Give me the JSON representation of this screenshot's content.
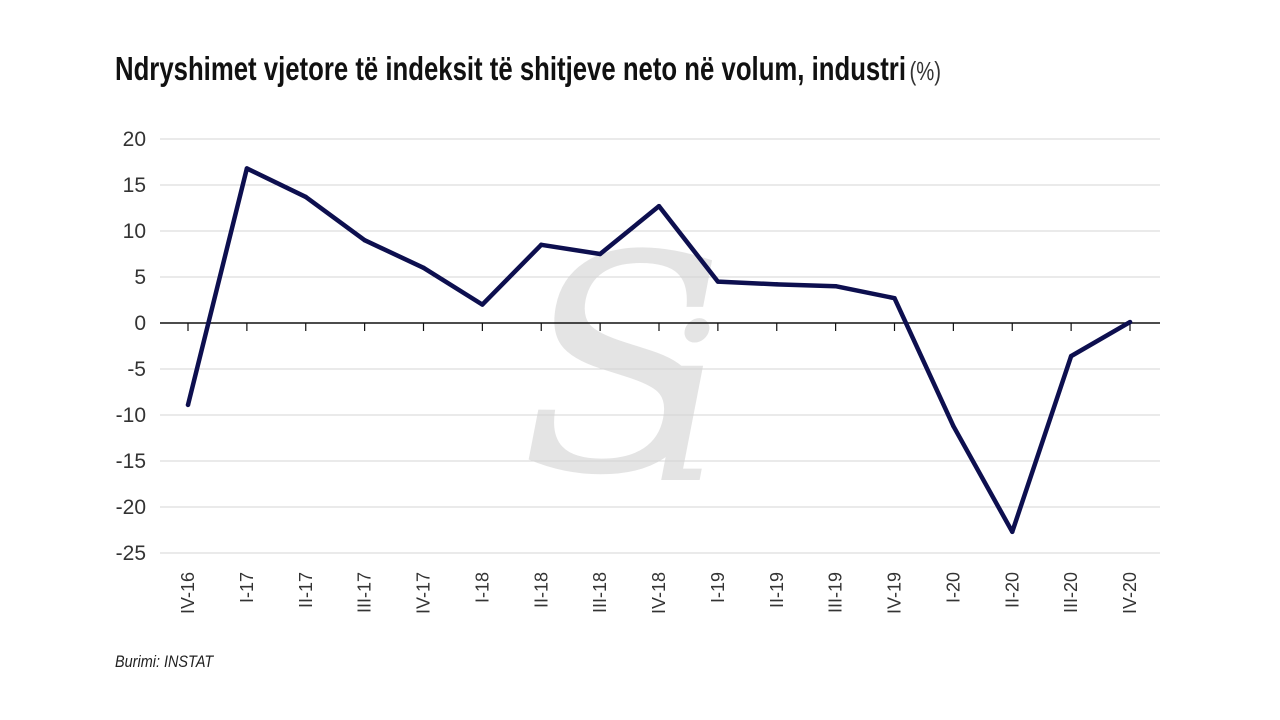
{
  "chart_data": {
    "type": "line",
    "title": "Ndryshimet vjetore të indeksit të shitjeve neto në volum, industri",
    "unit": "(%)",
    "xlabel": "",
    "ylabel": "",
    "ylim": [
      -25,
      20
    ],
    "yticks": [
      20,
      15,
      10,
      5,
      0,
      -5,
      -10,
      -15,
      -20,
      -25
    ],
    "grid": true,
    "categories": [
      "IV-16",
      "I-17",
      "II-17",
      "III-17",
      "IV-17",
      "I-18",
      "II-18",
      "III-18",
      "IV-18",
      "I-19",
      "II-19",
      "III-19",
      "IV-19",
      "I-20",
      "II-20",
      "III-20",
      "IV-20"
    ],
    "series": [
      {
        "name": "Industri",
        "color": "#0d0f4f",
        "values": [
          -8.9,
          16.8,
          13.7,
          9.0,
          6.0,
          2.0,
          8.5,
          7.5,
          12.7,
          4.5,
          4.2,
          4.0,
          2.7,
          -11.2,
          -22.7,
          -3.6,
          0.1
        ]
      }
    ],
    "source": "Burimi: INSTAT",
    "watermark": "Si"
  }
}
